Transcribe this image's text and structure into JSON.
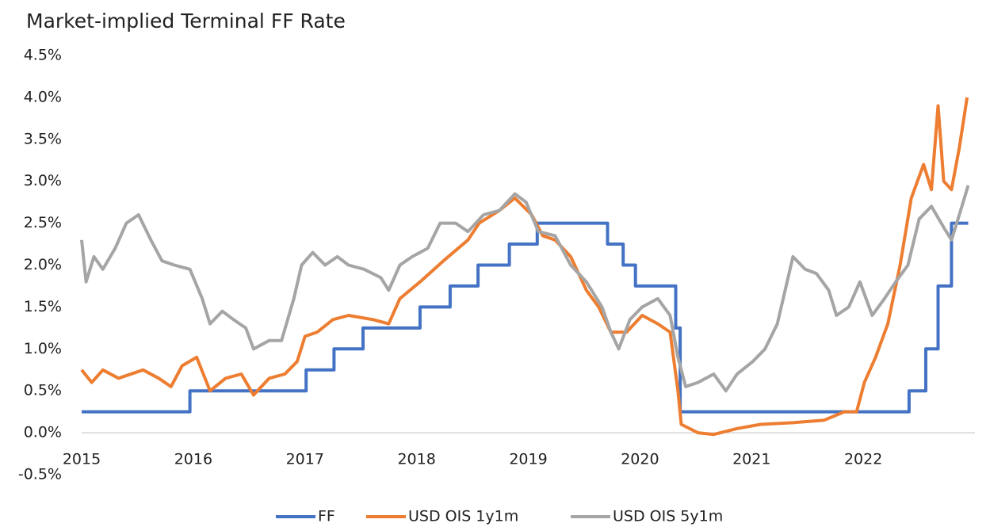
{
  "chart_data": {
    "type": "line",
    "title": "Market-implied Terminal FF Rate",
    "xlim": [
      2015,
      2023
    ],
    "xticks": [
      2015,
      2016,
      2017,
      2018,
      2019,
      2020,
      2021,
      2022
    ],
    "ylim": [
      -0.5,
      4.5
    ],
    "yticks": [
      {
        "value": -0.5,
        "label": "-0.5%"
      },
      {
        "value": 0,
        "label": "0.0%"
      },
      {
        "value": 0.5,
        "label": "0.5%"
      },
      {
        "value": 1,
        "label": "1.0%"
      },
      {
        "value": 1.5,
        "label": "1.5%"
      },
      {
        "value": 2,
        "label": "2.0%"
      },
      {
        "value": 2.5,
        "label": "2.5%"
      },
      {
        "value": 3,
        "label": "3.0%"
      },
      {
        "value": 3.5,
        "label": "3.5%"
      },
      {
        "value": 4,
        "label": "4.0%"
      },
      {
        "value": 4.5,
        "label": "4.5%"
      }
    ],
    "grid": false,
    "legend": "bottom",
    "series": [
      {
        "name": "FF",
        "color": "#4472c4",
        "x": [
          2015,
          2015.97,
          2015.97,
          2017.01,
          2017.01,
          2017.26,
          2017.26,
          2017.52,
          2017.52,
          2018.03,
          2018.03,
          2018.3,
          2018.3,
          2018.55,
          2018.55,
          2018.83,
          2018.83,
          2019.08,
          2019.08,
          2019.71,
          2019.71,
          2019.85,
          2019.85,
          2019.96,
          2019.96,
          2020.32,
          2020.32,
          2020.36,
          2020.36,
          2022.41,
          2022.41,
          2022.56,
          2022.56,
          2022.67,
          2022.67,
          2022.79,
          2022.79,
          2022.94
        ],
        "values": [
          0.25,
          0.25,
          0.5,
          0.5,
          0.75,
          0.75,
          1,
          1,
          1.25,
          1.25,
          1.5,
          1.5,
          1.75,
          1.75,
          2,
          2,
          2.25,
          2.25,
          2.5,
          2.5,
          2.25,
          2.25,
          2,
          2,
          1.75,
          1.75,
          1.25,
          1.25,
          0.25,
          0.25,
          0.5,
          0.5,
          1,
          1,
          1.75,
          1.75,
          2.5,
          2.5
        ]
      },
      {
        "name": "USD OIS 1y1m",
        "color": "#ed7d31",
        "x": [
          2015.0,
          2015.09,
          2015.19,
          2015.33,
          2015.55,
          2015.69,
          2015.8,
          2015.9,
          2016.03,
          2016.15,
          2016.29,
          2016.43,
          2016.54,
          2016.68,
          2016.82,
          2016.93,
          2017.0,
          2017.11,
          2017.25,
          2017.39,
          2017.61,
          2017.75,
          2017.85,
          2018.03,
          2018.24,
          2018.46,
          2018.56,
          2018.74,
          2018.88,
          2019.03,
          2019.13,
          2019.24,
          2019.38,
          2019.52,
          2019.63,
          2019.74,
          2019.88,
          2020.02,
          2020.16,
          2020.27,
          2020.34,
          2020.37,
          2020.52,
          2020.66,
          2020.87,
          2021.08,
          2021.37,
          2021.65,
          2021.83,
          2021.94,
          2022.01,
          2022.11,
          2022.22,
          2022.33,
          2022.43,
          2022.54,
          2022.61,
          2022.67,
          2022.72,
          2022.79,
          2022.86,
          2022.93
        ],
        "values": [
          0.75,
          0.6,
          0.75,
          0.65,
          0.75,
          0.65,
          0.55,
          0.8,
          0.9,
          0.5,
          0.65,
          0.7,
          0.45,
          0.65,
          0.7,
          0.85,
          1.15,
          1.2,
          1.35,
          1.4,
          1.35,
          1.3,
          1.6,
          1.8,
          2.05,
          2.3,
          2.5,
          2.65,
          2.8,
          2.6,
          2.35,
          2.3,
          2.1,
          1.7,
          1.5,
          1.2,
          1.2,
          1.4,
          1.3,
          1.2,
          0.5,
          0.1,
          0.0,
          -0.02,
          0.05,
          0.1,
          0.12,
          0.15,
          0.25,
          0.25,
          0.6,
          0.9,
          1.3,
          2.0,
          2.8,
          3.2,
          2.9,
          3.9,
          3.0,
          2.9,
          3.4,
          4.0
        ]
      },
      {
        "name": "USD OIS 5y1m",
        "color": "#a5a5a5",
        "x": [
          2015.0,
          2015.04,
          2015.11,
          2015.19,
          2015.3,
          2015.4,
          2015.51,
          2015.62,
          2015.72,
          2015.83,
          2015.97,
          2016.08,
          2016.15,
          2016.26,
          2016.36,
          2016.47,
          2016.54,
          2016.68,
          2016.79,
          2016.9,
          2016.97,
          2017.07,
          2017.18,
          2017.29,
          2017.39,
          2017.53,
          2017.68,
          2017.75,
          2017.85,
          2017.96,
          2018.1,
          2018.21,
          2018.35,
          2018.46,
          2018.6,
          2018.74,
          2018.88,
          2018.98,
          2019.09,
          2019.24,
          2019.38,
          2019.52,
          2019.66,
          2019.74,
          2019.81,
          2019.91,
          2020.02,
          2020.16,
          2020.27,
          2020.34,
          2020.41,
          2020.52,
          2020.66,
          2020.77,
          2020.87,
          2021.01,
          2021.12,
          2021.23,
          2021.37,
          2021.48,
          2021.58,
          2021.69,
          2021.76,
          2021.87,
          2021.97,
          2022.08,
          2022.19,
          2022.29,
          2022.4,
          2022.5,
          2022.61,
          2022.72,
          2022.79,
          2022.86,
          2022.94
        ],
        "values": [
          2.3,
          1.8,
          2.1,
          1.95,
          2.2,
          2.5,
          2.6,
          2.3,
          2.05,
          2.0,
          1.95,
          1.6,
          1.3,
          1.45,
          1.35,
          1.25,
          1.0,
          1.1,
          1.1,
          1.6,
          2.0,
          2.15,
          2.0,
          2.1,
          2.0,
          1.95,
          1.85,
          1.7,
          2.0,
          2.1,
          2.2,
          2.5,
          2.5,
          2.4,
          2.6,
          2.65,
          2.85,
          2.75,
          2.4,
          2.35,
          2.0,
          1.8,
          1.5,
          1.2,
          1.0,
          1.35,
          1.5,
          1.6,
          1.4,
          0.9,
          0.55,
          0.6,
          0.7,
          0.5,
          0.7,
          0.85,
          1.0,
          1.3,
          2.1,
          1.95,
          1.9,
          1.7,
          1.4,
          1.5,
          1.8,
          1.4,
          1.6,
          1.8,
          2.0,
          2.55,
          2.7,
          2.45,
          2.3,
          2.6,
          2.95
        ]
      }
    ]
  }
}
